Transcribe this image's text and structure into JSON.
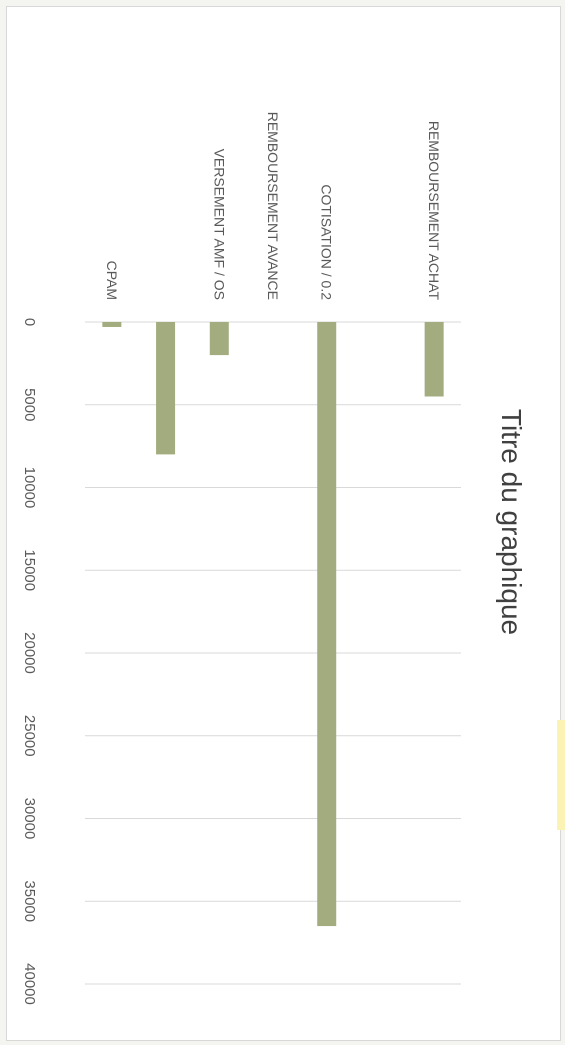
{
  "chart_data": {
    "type": "bar",
    "orientation": "horizontal",
    "title": "Titre du graphique",
    "categories": [
      "REMBOURSEMENT ACHAT",
      "",
      "COTISATION / 0.2",
      "REMBOURSEMENT AVANCE",
      "VERSEMENT AMF / OS",
      "",
      "CPAM"
    ],
    "values": [
      4500,
      0,
      36500,
      0,
      2000,
      8000,
      300
    ],
    "xlim": [
      0,
      40000
    ],
    "ticks": [
      "0",
      "5000",
      "10000",
      "15000",
      "20000",
      "25000",
      "30000",
      "35000",
      "40000"
    ],
    "grid": true,
    "bar_color": "#a2ac7e",
    "rotation": "page rotated 90 degrees clockwise"
  }
}
